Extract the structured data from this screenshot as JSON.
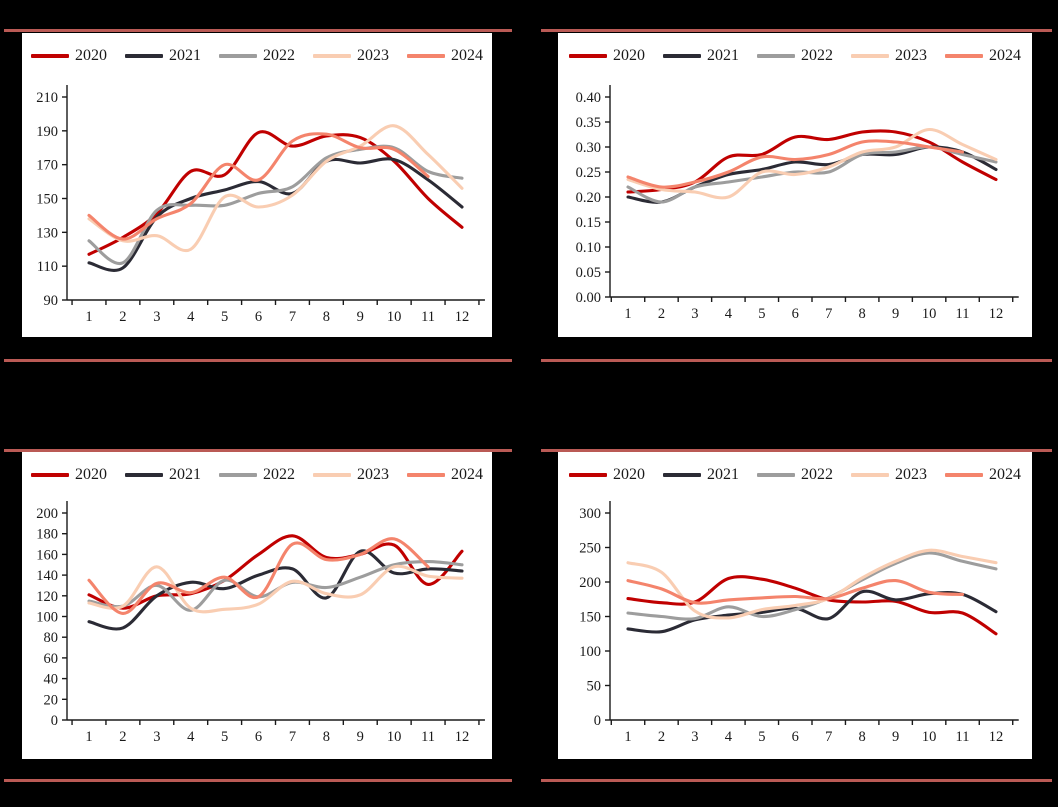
{
  "page": {
    "background": "#000000",
    "panel_background": "#ffffff",
    "separator_color": "#BA5A55",
    "axis_color": "#1a1a1a"
  },
  "legend": {
    "years": [
      "2020",
      "2021",
      "2022",
      "2023",
      "2024"
    ]
  },
  "series_colors": {
    "2020": "#C00000",
    "2021": "#2B2B35",
    "2022": "#9D9D9D",
    "2023": "#F9CDB2",
    "2024": "#F4846C"
  },
  "chart_data": [
    {
      "id": "top_left",
      "type": "line",
      "x_categories": [
        1,
        2,
        3,
        4,
        5,
        6,
        7,
        8,
        9,
        10,
        11,
        12
      ],
      "xlabel": "",
      "ylabel": "",
      "ylim": [
        90,
        210
      ],
      "ytick_step": 20,
      "y_decimals": 0,
      "grid": false,
      "legend_position": "top",
      "series": [
        {
          "name": "2020",
          "values": [
            117,
            127,
            141,
            166,
            164,
            189,
            181,
            187,
            186,
            172,
            150,
            133
          ]
        },
        {
          "name": "2021",
          "values": [
            112,
            109,
            139,
            150,
            155,
            160,
            153,
            172,
            171,
            173,
            161,
            145
          ]
        },
        {
          "name": "2022",
          "values": [
            125,
            112,
            143,
            146,
            146,
            153,
            157,
            174,
            179,
            180,
            166,
            162
          ]
        },
        {
          "name": "2023",
          "values": [
            138,
            125,
            128,
            120,
            151,
            145,
            152,
            172,
            181,
            193,
            176,
            156
          ]
        },
        {
          "name": "2024",
          "values": [
            140,
            126,
            138,
            147,
            170,
            161,
            184,
            188,
            180,
            179,
            163
          ]
        }
      ]
    },
    {
      "id": "top_right",
      "type": "line",
      "x_categories": [
        1,
        2,
        3,
        4,
        5,
        6,
        7,
        8,
        9,
        10,
        11,
        12
      ],
      "xlabel": "",
      "ylabel": "",
      "ylim": [
        0,
        0.4
      ],
      "ytick_step": 0.05,
      "y_decimals": 2,
      "grid": false,
      "legend_position": "top",
      "series": [
        {
          "name": "2020",
          "values": [
            0.21,
            0.215,
            0.23,
            0.28,
            0.285,
            0.32,
            0.315,
            0.33,
            0.33,
            0.31,
            0.27,
            0.235
          ]
        },
        {
          "name": "2021",
          "values": [
            0.2,
            0.19,
            0.22,
            0.245,
            0.255,
            0.27,
            0.265,
            0.285,
            0.285,
            0.3,
            0.29,
            0.255
          ]
        },
        {
          "name": "2022",
          "values": [
            0.22,
            0.19,
            0.22,
            0.23,
            0.24,
            0.25,
            0.25,
            0.285,
            0.29,
            0.3,
            0.285,
            0.27
          ]
        },
        {
          "name": "2023",
          "values": [
            0.235,
            0.215,
            0.21,
            0.2,
            0.25,
            0.245,
            0.26,
            0.29,
            0.3,
            0.335,
            0.305,
            0.275
          ]
        },
        {
          "name": "2024",
          "values": [
            0.24,
            0.22,
            0.23,
            0.25,
            0.28,
            0.275,
            0.285,
            0.31,
            0.31,
            0.3,
            0.29
          ]
        }
      ]
    },
    {
      "id": "bottom_left",
      "type": "line",
      "x_categories": [
        1,
        2,
        3,
        4,
        5,
        6,
        7,
        8,
        9,
        10,
        11,
        12
      ],
      "xlabel": "",
      "ylabel": "",
      "ylim": [
        0,
        200
      ],
      "ytick_step": 20,
      "y_decimals": 0,
      "grid": false,
      "legend_position": "top",
      "series": [
        {
          "name": "2020",
          "values": [
            121,
            108,
            120,
            122,
            135,
            160,
            178,
            157,
            160,
            169,
            131,
            163
          ]
        },
        {
          "name": "2021",
          "values": [
            95,
            89,
            120,
            133,
            127,
            140,
            146,
            118,
            163,
            142,
            146,
            144
          ]
        },
        {
          "name": "2022",
          "values": [
            115,
            110,
            130,
            106,
            135,
            119,
            133,
            128,
            138,
            150,
            153,
            150
          ]
        },
        {
          "name": "2023",
          "values": [
            113,
            110,
            148,
            108,
            107,
            112,
            134,
            122,
            121,
            148,
            139,
            137
          ]
        },
        {
          "name": "2024",
          "values": [
            135,
            103,
            132,
            123,
            138,
            119,
            170,
            155,
            160,
            175,
            148
          ]
        }
      ]
    },
    {
      "id": "bottom_right",
      "type": "line",
      "x_categories": [
        1,
        2,
        3,
        4,
        5,
        6,
        7,
        8,
        9,
        10,
        11,
        12
      ],
      "xlabel": "",
      "ylabel": "",
      "ylim": [
        0,
        300
      ],
      "ytick_step": 50,
      "y_decimals": 0,
      "grid": false,
      "legend_position": "top",
      "series": [
        {
          "name": "2020",
          "values": [
            176,
            170,
            171,
            205,
            204,
            191,
            174,
            171,
            172,
            156,
            155,
            125
          ]
        },
        {
          "name": "2021",
          "values": [
            132,
            128,
            145,
            152,
            156,
            162,
            147,
            186,
            174,
            183,
            182,
            157
          ]
        },
        {
          "name": "2022",
          "values": [
            155,
            150,
            147,
            164,
            150,
            160,
            177,
            203,
            227,
            242,
            230,
            219
          ]
        },
        {
          "name": "2023",
          "values": [
            228,
            214,
            158,
            148,
            160,
            166,
            176,
            206,
            230,
            246,
            237,
            228
          ]
        },
        {
          "name": "2024",
          "values": [
            202,
            190,
            170,
            174,
            177,
            179,
            176,
            191,
            202,
            185,
            182
          ]
        }
      ]
    }
  ]
}
